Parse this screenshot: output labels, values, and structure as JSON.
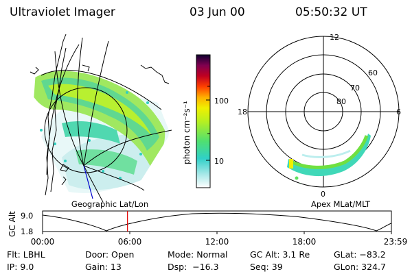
{
  "header": {
    "instrument": "Ultraviolet Imager",
    "date": "03 Jun 00",
    "time": "05:50:32 UT"
  },
  "colorbar": {
    "label": "photon cm⁻²s⁻¹",
    "ticks": [
      "100",
      "10"
    ]
  },
  "geo_panel": {
    "caption": "Geographic Lat/Lon"
  },
  "polar_panel": {
    "caption": "Apex MLat/MLT",
    "mlt_labels": {
      "top": "12",
      "left": "18",
      "right": "6",
      "bottom": "0"
    },
    "lat_labels": [
      "60",
      "70",
      "80"
    ]
  },
  "altitude_plot": {
    "ylabel": "GC Alt",
    "y_ticks": [
      "9.0",
      "1.8"
    ],
    "x_ticks": [
      "00:00",
      "06:00",
      "12:00",
      "18:00",
      "23:59"
    ],
    "current_time_hours": 5.842
  },
  "info": {
    "flt": "Flt: LBHL",
    "door": "Door: Open",
    "mode": "Mode: Normal",
    "gc_alt": "GC Alt: 3.1 Re",
    "glat": "GLat: −83.2",
    "ip": "IP: 9.0",
    "gain": "Gain: 13",
    "dsp": "Dsp:  −16.3",
    "seq": "Seq: 39",
    "glon": "GLon: 324.7"
  },
  "colors": {
    "marker": "#e00000",
    "meridian": "#0000cc"
  }
}
